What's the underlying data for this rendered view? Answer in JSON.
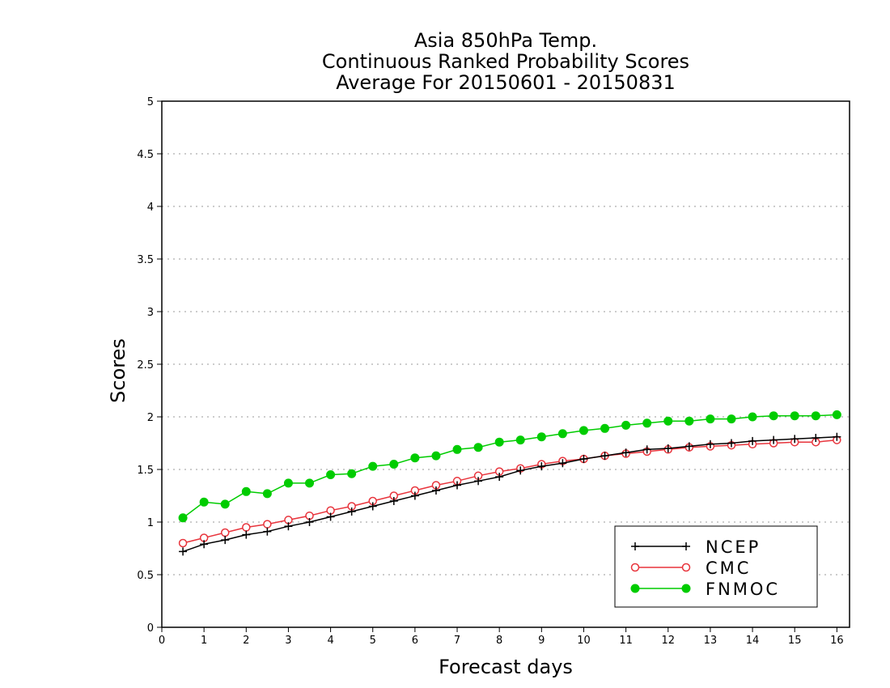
{
  "chart_data": {
    "type": "line",
    "title_lines": [
      "Asia 850hPa Temp.",
      "Continuous Ranked Probability Scores",
      "Average For 20150601 - 20150831"
    ],
    "xlabel": "Forecast days",
    "ylabel": "Scores",
    "xlim": [
      0,
      16.3
    ],
    "ylim": [
      0,
      5
    ],
    "x_ticks": [
      "0",
      "1",
      "2",
      "3",
      "4",
      "5",
      "6",
      "7",
      "8",
      "9",
      "10",
      "11",
      "12",
      "13",
      "14",
      "15",
      "16"
    ],
    "y_ticks": [
      "0",
      "0.5",
      "1",
      "1.5",
      "2",
      "2.5",
      "3",
      "3.5",
      "4",
      "4.5",
      "5"
    ],
    "grid": true,
    "legend_position": "bottom-right",
    "x": [
      0.5,
      1,
      1.5,
      2,
      2.5,
      3,
      3.5,
      4,
      4.5,
      5,
      5.5,
      6,
      6.5,
      7,
      7.5,
      8,
      8.5,
      9,
      9.5,
      10,
      10.5,
      11,
      11.5,
      12,
      12.5,
      13,
      13.5,
      14,
      14.5,
      15,
      15.5,
      16
    ],
    "series": [
      {
        "name": "NCEP",
        "color": "#000000",
        "marker": "plus",
        "values": [
          0.72,
          0.79,
          0.83,
          0.88,
          0.91,
          0.96,
          1.0,
          1.05,
          1.1,
          1.15,
          1.2,
          1.25,
          1.3,
          1.35,
          1.39,
          1.43,
          1.49,
          1.53,
          1.56,
          1.6,
          1.63,
          1.66,
          1.69,
          1.7,
          1.72,
          1.74,
          1.75,
          1.77,
          1.78,
          1.79,
          1.8,
          1.81
        ]
      },
      {
        "name": "CMC",
        "color": "#e8343c",
        "marker": "open-circle",
        "values": [
          0.8,
          0.85,
          0.9,
          0.95,
          0.98,
          1.02,
          1.06,
          1.11,
          1.15,
          1.2,
          1.25,
          1.3,
          1.35,
          1.39,
          1.44,
          1.48,
          1.51,
          1.55,
          1.58,
          1.6,
          1.63,
          1.65,
          1.67,
          1.69,
          1.71,
          1.72,
          1.73,
          1.74,
          1.75,
          1.76,
          1.76,
          1.78
        ]
      },
      {
        "name": "FNMOC",
        "color": "#00cc00",
        "marker": "filled-circle",
        "values": [
          1.04,
          1.19,
          1.17,
          1.29,
          1.27,
          1.37,
          1.37,
          1.45,
          1.46,
          1.53,
          1.55,
          1.61,
          1.63,
          1.69,
          1.71,
          1.76,
          1.78,
          1.81,
          1.84,
          1.87,
          1.89,
          1.92,
          1.94,
          1.96,
          1.96,
          1.98,
          1.98,
          2.0,
          2.01,
          2.01,
          2.01,
          2.02
        ]
      }
    ]
  }
}
